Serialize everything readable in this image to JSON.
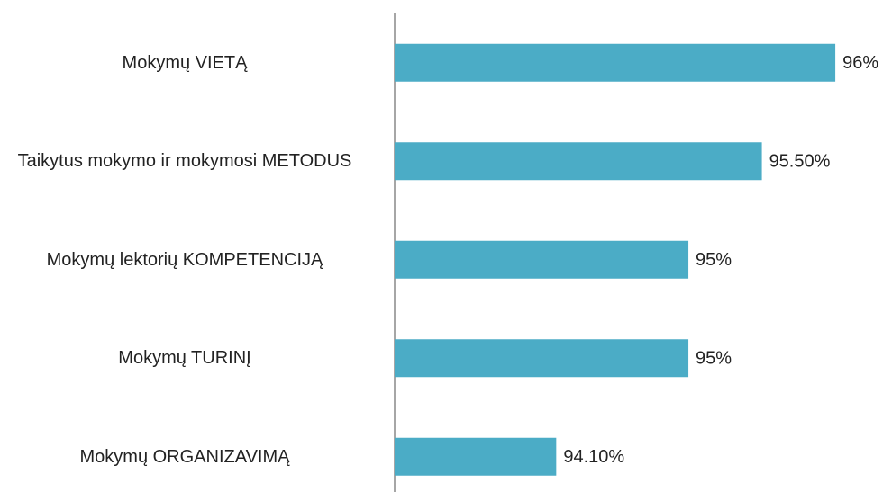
{
  "chart_data": {
    "type": "barh",
    "categories": [
      "Mokymų VIETĄ",
      "Taikytus mokymo ir mokymosi METODUS",
      "Mokymų lektorių KOMPETENCIJĄ",
      "Mokymų TURINĮ",
      "Mokymų ORGANIZAVIMĄ"
    ],
    "values": [
      96,
      95.5,
      95,
      95,
      94.1
    ],
    "value_labels": [
      "96%",
      "95.50%",
      "95%",
      "95%",
      "94.10%"
    ],
    "color": "#4bacc6",
    "xlim": [
      93,
      96.3
    ]
  }
}
